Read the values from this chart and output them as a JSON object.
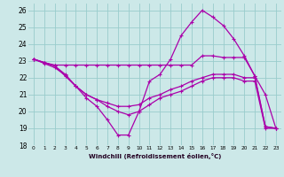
{
  "bg_color": "#cce8e8",
  "grid_color": "#99cccc",
  "line_color": "#aa00aa",
  "xlabel": "Windchill (Refroidissement éolien,°C)",
  "xlim": [
    -0.5,
    23.5
  ],
  "ylim": [
    18,
    26.4
  ],
  "yticks": [
    18,
    19,
    20,
    21,
    22,
    23,
    24,
    25,
    26
  ],
  "xticks": [
    0,
    1,
    2,
    3,
    4,
    5,
    6,
    7,
    8,
    9,
    10,
    11,
    12,
    13,
    14,
    15,
    16,
    17,
    18,
    19,
    20,
    21,
    22,
    23
  ],
  "lines": [
    {
      "x": [
        0,
        1,
        2,
        3,
        4,
        5,
        6,
        7,
        8,
        9,
        10,
        11,
        12,
        13,
        14,
        15,
        16,
        17,
        18,
        19,
        20,
        21,
        22,
        23
      ],
      "y": [
        23.1,
        22.9,
        22.7,
        22.1,
        21.5,
        20.8,
        20.3,
        19.5,
        18.6,
        18.6,
        20.0,
        21.8,
        22.2,
        23.1,
        24.5,
        25.3,
        26.0,
        25.6,
        25.1,
        24.3,
        23.3,
        22.1,
        21.0,
        19.0
      ]
    },
    {
      "x": [
        0,
        1,
        2,
        3,
        4,
        5,
        6,
        7,
        8,
        9,
        10,
        11,
        12,
        13,
        14,
        15,
        16,
        17,
        18,
        19,
        20,
        21,
        22,
        23
      ],
      "y": [
        23.1,
        22.9,
        22.75,
        22.75,
        22.75,
        22.75,
        22.75,
        22.75,
        22.75,
        22.75,
        22.75,
        22.75,
        22.75,
        22.75,
        22.75,
        22.75,
        23.3,
        23.3,
        23.2,
        23.2,
        23.2,
        22.1,
        19.1,
        19.0
      ]
    },
    {
      "x": [
        0,
        1,
        2,
        3,
        4,
        5,
        6,
        7,
        8,
        9,
        10,
        11,
        12,
        13,
        14,
        15,
        16,
        17,
        18,
        19,
        20,
        21,
        22,
        23
      ],
      "y": [
        23.1,
        22.9,
        22.7,
        22.2,
        21.5,
        21.0,
        20.7,
        20.5,
        20.3,
        20.3,
        20.4,
        20.8,
        21.0,
        21.3,
        21.5,
        21.8,
        22.0,
        22.2,
        22.2,
        22.2,
        22.0,
        22.0,
        19.1,
        19.0
      ]
    },
    {
      "x": [
        0,
        1,
        2,
        3,
        4,
        5,
        6,
        7,
        8,
        9,
        10,
        11,
        12,
        13,
        14,
        15,
        16,
        17,
        18,
        19,
        20,
        21,
        22,
        23
      ],
      "y": [
        23.1,
        22.85,
        22.6,
        22.15,
        21.5,
        21.0,
        20.7,
        20.3,
        20.0,
        19.8,
        20.0,
        20.4,
        20.8,
        21.0,
        21.2,
        21.5,
        21.8,
        22.0,
        22.0,
        22.0,
        21.8,
        21.8,
        19.0,
        19.0
      ]
    }
  ]
}
